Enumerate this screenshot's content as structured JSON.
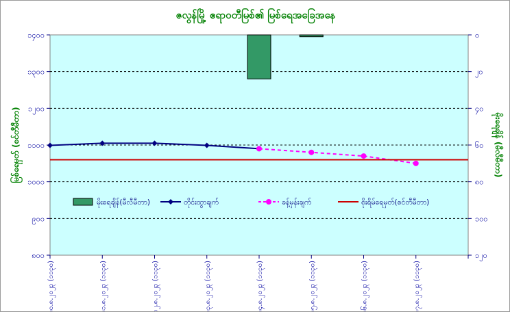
{
  "chart_data": {
    "type": "bar+line",
    "title": "ဇလွန်မြို့ ဧရာဝတီမြစ်၏ မြစ်ရေအခြေအနေ",
    "ylabel_left": "မြစ်ရေမှတ် (စင်တီမီတာ)",
    "ylabel_right": "မိုးရေချိန် (မီလီမီတာ)",
    "ylim_left": [
      800,
      1400
    ],
    "ylim_right": [
      0,
      120
    ],
    "yticks_left": [
      800,
      900,
      1000,
      1100,
      1200,
      1300,
      1400
    ],
    "yticks_right": [
      0,
      20,
      40,
      60,
      80,
      100,
      120
    ],
    "ytick_labels_left": [
      "၈၀၀",
      "၉၀၀",
      "၁၀၀၀",
      "၁၁၀၀",
      "၁၂၀၀",
      "၁၃၀၀",
      "၁၄၀၀"
    ],
    "ytick_labels_right": [
      "၀",
      "၂၀",
      "၄၀",
      "၆၀",
      "၈၀",
      "၁၀၀",
      "၁၂၀"
    ],
    "right_axis_inverted": true,
    "categories": [
      "၁၀.၈.၂၀၂၃ (၁၁၃၀)",
      "၁၁.၈.၂၀၂၃ (၁၁၃၀)",
      "၁၂.၈.၂၀၂၃ (၁၁၃၀)",
      "၁၃.၈.၂၀၂၃ (၁၁၃၀)",
      "၁၄.၈.၂၀၂၃ (၁၁၃၀)",
      "၁၅.၈.၂၀၂၃ (၁၁၃၀)",
      "၁၆.၈.၂၀၂၃ (၁၁၃၀)",
      "၁၇.၈.၂၀၂၃ (၁၁၃၀)"
    ],
    "series": [
      {
        "name": "မိုးရေချိန်(မီလီမီတာ)",
        "type": "bar",
        "axis": "right",
        "color": "#339966",
        "values": [
          0,
          0,
          0,
          0,
          24,
          1,
          0,
          0
        ]
      },
      {
        "name": "တိုင်းထွာချက်",
        "type": "line",
        "axis": "left",
        "color": "#000080",
        "values": [
          1099,
          1105,
          1105,
          1099,
          1090,
          null,
          null,
          null
        ]
      },
      {
        "name": "ခန့်မှန်းချက်",
        "type": "line",
        "axis": "left",
        "color": "#ff00ff",
        "dashed": true,
        "values": [
          null,
          null,
          null,
          null,
          1090,
          1080,
          1070,
          1050
        ]
      },
      {
        "name": "စိုးရိမ်ရေမှတ်(စင်တီမီတာ)",
        "type": "hline",
        "axis": "left",
        "color": "#cc0000",
        "value": 1060
      }
    ],
    "legend": {
      "placement": "inside-bottom",
      "items": [
        "မိုးရေချိန်(မီလီမီတာ)",
        "တိုင်းထွာချက်",
        "ခန့်မှန်းချက်",
        "စိုးရိမ်ရေမှတ်(စင်တီမီတာ)"
      ]
    },
    "grid": {
      "horizontal": true,
      "style": "dashed"
    },
    "colors": {
      "plot_bg": "#ccffff",
      "title": "#008000",
      "axis_label": "#008000",
      "tick_label": "#0000a0",
      "measured": "#000080",
      "forecast": "#ff00ff",
      "danger": "#cc0000",
      "rain": "#339966"
    }
  }
}
